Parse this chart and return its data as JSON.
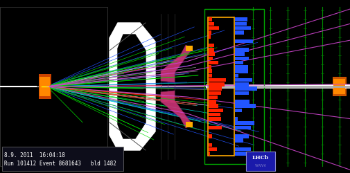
{
  "background_color": "#000000",
  "text1": "8.9. 2011  16:04:18",
  "text2": "Run 101412 Event 8681643   bld 1482",
  "text_color": "#ffffff",
  "logo_text": "LHCb",
  "figsize": [
    5.06,
    2.5
  ],
  "dpi": 100,
  "velo_color": "#ff8800",
  "magnet_color": "#cc3377",
  "calorimeter_red_color": "#ff2200",
  "calorimeter_blue_color": "#2255ff",
  "beam_color": "#ffffff"
}
